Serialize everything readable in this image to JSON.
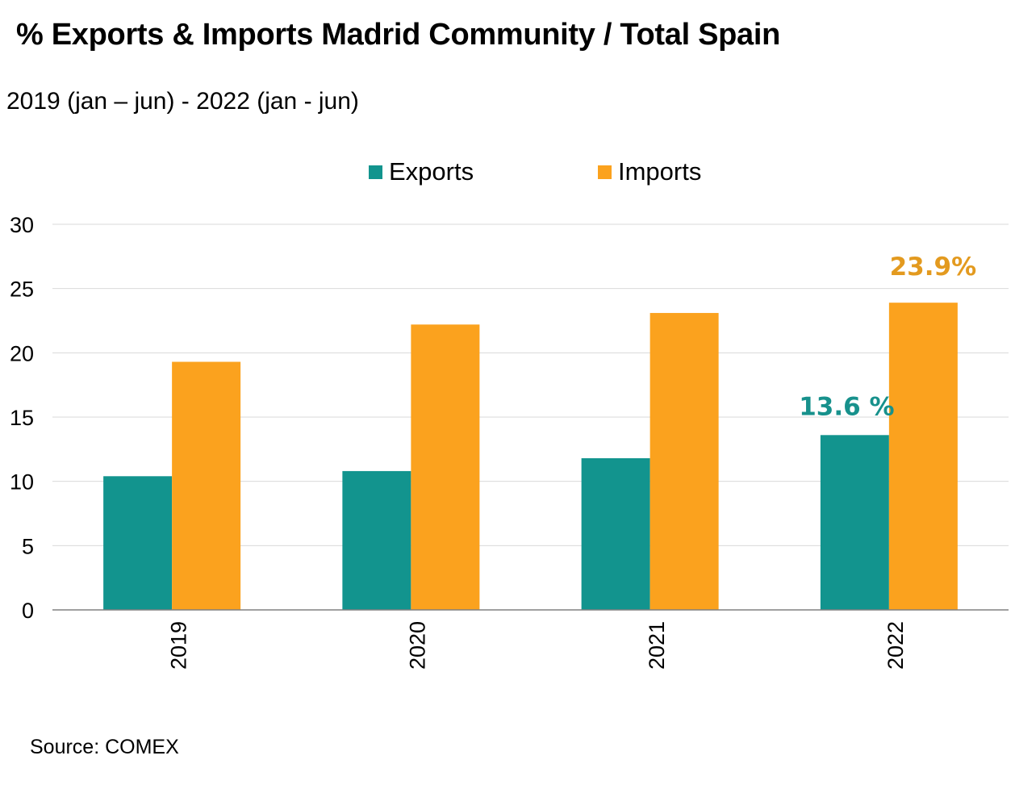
{
  "chart_data": {
    "type": "bar",
    "title": "% Exports & Imports Madrid Community / Total Spain",
    "subtitle": "2019 (jan – jun) - 2022 (jan - jun)",
    "xlabel": "",
    "ylabel": "",
    "categories": [
      "2019",
      "2020",
      "2021",
      "2022"
    ],
    "series": [
      {
        "name": "Exports",
        "color": "#12948e",
        "values": [
          10.4,
          10.8,
          11.8,
          13.6
        ]
      },
      {
        "name": "Imports",
        "color": "#fba21e",
        "values": [
          19.3,
          22.2,
          23.1,
          23.9
        ]
      }
    ],
    "ylim": [
      0,
      30
    ],
    "yticks": [
      "0",
      "5",
      "10",
      "15",
      "20",
      "25",
      "30"
    ],
    "grid": true,
    "legend": "top-center",
    "annotations": [
      {
        "series": "Exports",
        "category": "2022",
        "text": "13.6 %",
        "color": "#17918c"
      },
      {
        "series": "Imports",
        "category": "2022",
        "text": "23.9%",
        "color": "#e39a1f"
      }
    ],
    "source": "Source: COMEX"
  }
}
